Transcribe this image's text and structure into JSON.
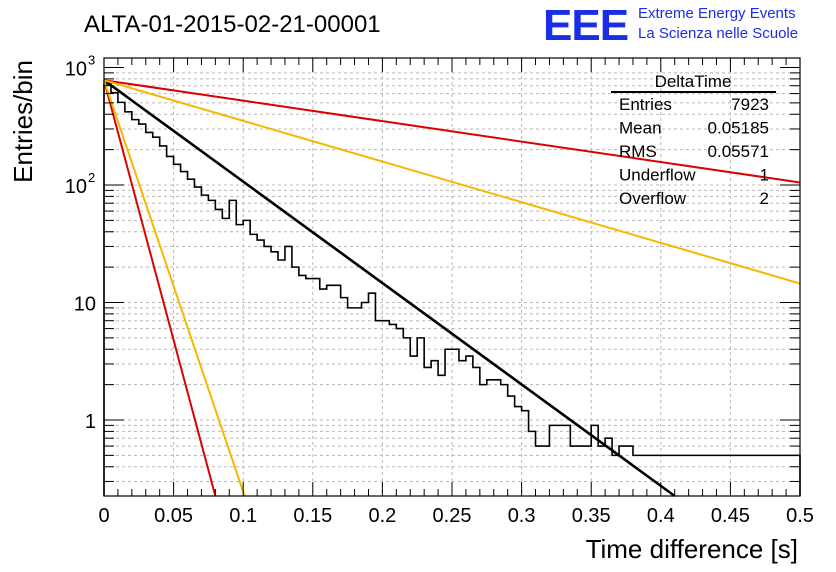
{
  "chart_data": {
    "type": "histogram",
    "title": "ALTA-01-2015-02-21-00001",
    "xlabel": "Time difference [s]",
    "ylabel": "Entries/bin",
    "xlim": [
      0,
      0.5
    ],
    "ylim": [
      0.22,
      1000
    ],
    "y_scale": "log",
    "grid": true,
    "x_ticks": [
      "0",
      "0.05",
      "0.1",
      "0.15",
      "0.2",
      "0.25",
      "0.3",
      "0.35",
      "0.4",
      "0.45",
      "0.5"
    ],
    "y_ticks": [
      {
        "value": 1,
        "label": "1"
      },
      {
        "value": 10,
        "label": "10"
      },
      {
        "value": 100,
        "label": "10",
        "exp": "2"
      },
      {
        "value": 1000,
        "label": "10",
        "exp": "3"
      }
    ],
    "histogram": {
      "bin_width": 0.005,
      "counts": [
        720,
        610,
        505,
        420,
        360,
        330,
        280,
        255,
        215,
        175,
        150,
        130,
        112,
        96,
        82,
        74,
        62,
        52,
        74,
        46,
        50,
        38,
        34,
        30,
        27,
        23,
        30,
        20,
        17,
        16,
        16,
        13,
        14,
        14,
        11,
        9,
        9,
        10,
        12,
        7,
        7,
        6.5,
        6,
        5,
        3.5,
        5,
        2.8,
        3.2,
        2.4,
        4,
        4,
        3.2,
        3.5,
        2.8,
        2.0,
        2.2,
        2.2,
        2.0,
        1.6,
        1.3,
        1.2,
        0.8,
        0.6,
        0.6,
        0.9,
        0.9,
        0.9,
        0.6,
        0.6,
        0.6,
        0.9,
        0.6,
        0.7,
        0.5,
        0.6,
        0.6,
        0.5,
        0.5,
        0.5,
        0.5,
        0.5,
        0.5,
        0.5,
        0.5,
        0.5,
        0.5,
        0.5,
        0.5,
        0.5,
        0.5,
        0.5,
        0.5,
        0.5,
        0.5,
        0.5,
        0.5,
        0.5,
        0.5,
        0.5,
        0.5
      ]
    },
    "lines": [
      {
        "color": "#000000",
        "x": [
          0,
          0.41
        ],
        "y": [
          780,
          0.22
        ]
      },
      {
        "color": "#dd0000",
        "x": [
          0,
          0.5
        ],
        "y": [
          780,
          105
        ]
      },
      {
        "color": "#f5b800",
        "x": [
          0,
          0.5
        ],
        "y": [
          780,
          14.5
        ]
      },
      {
        "color": "#dd0000",
        "x": [
          0,
          0.08
        ],
        "y": [
          780,
          0.22
        ]
      },
      {
        "color": "#f5b800",
        "x": [
          0,
          0.101
        ],
        "y": [
          780,
          0.22
        ]
      }
    ],
    "stats": {
      "title": "DeltaTime",
      "rows": [
        {
          "label": "Entries",
          "value": "7923"
        },
        {
          "label": "Mean",
          "value": "0.05185"
        },
        {
          "label": "RMS",
          "value": "0.05571"
        },
        {
          "label": "Underflow",
          "value": "1"
        },
        {
          "label": "Overflow",
          "value": "2"
        }
      ]
    }
  },
  "logo": {
    "text": "EEE",
    "line1": "Extreme Energy Events",
    "line2": "La Scienza nelle Scuole",
    "color": "#1a2ee6"
  }
}
